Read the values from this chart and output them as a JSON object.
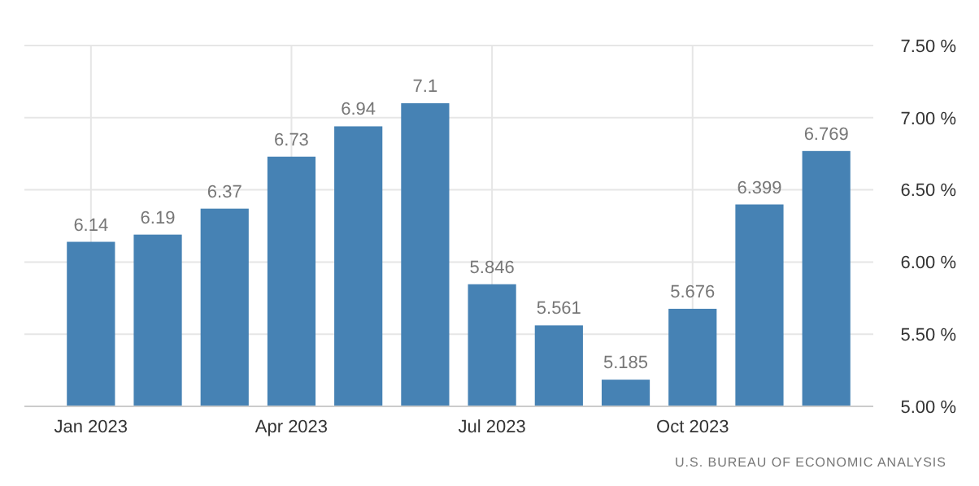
{
  "chart_data": {
    "type": "bar",
    "categories": [
      "Jan 2023",
      null,
      null,
      "Apr 2023",
      null,
      null,
      "Jul 2023",
      null,
      null,
      "Oct 2023",
      null,
      null
    ],
    "values": [
      6.14,
      6.19,
      6.37,
      6.73,
      6.94,
      7.1,
      5.846,
      5.561,
      5.185,
      5.676,
      6.399,
      6.769
    ],
    "color": "#4682b4",
    "ylim": [
      5,
      7.5
    ],
    "yticks": [
      {
        "value": 5,
        "label": "5.00 %"
      },
      {
        "value": 5.5,
        "label": "5.50 %"
      },
      {
        "value": 6,
        "label": "6.00 %"
      },
      {
        "value": 6.5,
        "label": "6.50 %"
      },
      {
        "value": 7,
        "label": "7.00 %"
      },
      {
        "value": 7.5,
        "label": "7.50 %"
      }
    ],
    "grid": true,
    "data_labels": true,
    "annotations": [
      "U.S. BUREAU OF ECONOMIC ANALYSIS"
    ]
  }
}
